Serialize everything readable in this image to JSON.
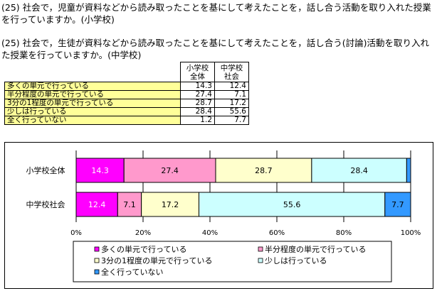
{
  "questions": {
    "q1": "(25) 社会で，児童が資料などから読み取ったことを基にして考えたことを，話し合う活動を取り入れた授業を行っていますか。(小学校)",
    "q2": "(25) 社会で，生徒が資料などから読み取ったことを基にして考えたことを，話し合う(討論)活動を取り入れた授業を行っていますか。(中学校)"
  },
  "table": {
    "col_headers": [
      "小学校全体",
      "中学校社会"
    ],
    "rows": [
      {
        "label": "多くの単元で行っている",
        "v1": "14.3",
        "v2": "12.4"
      },
      {
        "label": "半分程度の単元で行っている",
        "v1": "27.4",
        "v2": "7.1"
      },
      {
        "label": "3分の1程度の単元で行っている",
        "v1": "28.7",
        "v2": "17.2"
      },
      {
        "label": "少しは行っている",
        "v1": "28.4",
        "v2": "55.6"
      },
      {
        "label": "全く行っていない",
        "v1": "1.2",
        "v2": "7.7"
      }
    ]
  },
  "chart_data": {
    "type": "bar",
    "orientation": "horizontal",
    "stacked": true,
    "percent_scale": true,
    "categories": [
      "小学校全体",
      "中学校社会"
    ],
    "series": [
      {
        "name": "多くの単元で行っている",
        "values": [
          14.3,
          12.4
        ],
        "color": "#ff00ff",
        "text_color": "#ffffff"
      },
      {
        "name": "半分程度の単元で行っている",
        "values": [
          27.4,
          7.1
        ],
        "color": "#ff99cc",
        "text_color": "#000000"
      },
      {
        "name": "3分の1程度の単元で行っている",
        "values": [
          28.7,
          17.2
        ],
        "color": "#ffffcc",
        "text_color": "#000000"
      },
      {
        "name": "少しは行っている",
        "values": [
          28.4,
          55.6
        ],
        "color": "#ccffff",
        "text_color": "#000000"
      },
      {
        "name": "全く行っていない",
        "values": [
          1.2,
          7.7
        ],
        "color": "#3399ff",
        "text_color": "#000000"
      }
    ],
    "xlim": [
      0,
      100
    ],
    "x_ticks": [
      "0%",
      "20%",
      "40%",
      "60%",
      "80%",
      "100%"
    ],
    "legend_position": "bottom"
  }
}
